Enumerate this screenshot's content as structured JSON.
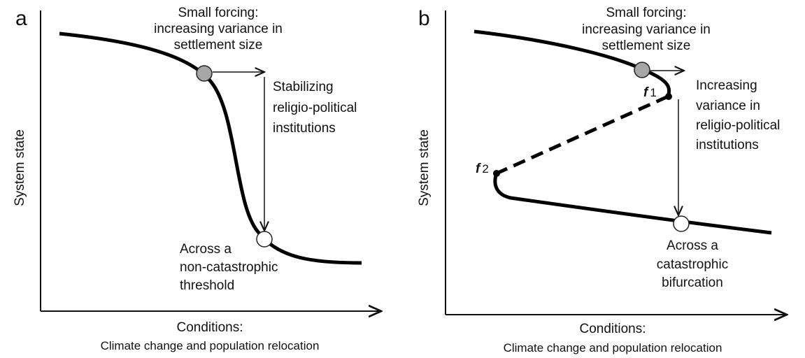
{
  "panels": [
    {
      "label": "a",
      "forcing": [
        "Small forcing:",
        "increasing variance in",
        "settlement size"
      ],
      "response": [
        "Stabilizing",
        "religio-political",
        "institutions"
      ],
      "outcome": [
        "Across a",
        "non-catastrophic",
        "threshold"
      ],
      "y_axis": "System state",
      "x_axis": [
        "Conditions:",
        "Climate change and population relocation"
      ]
    },
    {
      "label": "b",
      "forcing": [
        "Small forcing:",
        "increasing variance in",
        "settlement size"
      ],
      "response": [
        "Increasing",
        "variance in",
        "religio-political",
        "institutions"
      ],
      "outcome": [
        "Across a",
        "catastrophic",
        "bifurcation"
      ],
      "y_axis": "System state",
      "x_axis": [
        "Conditions:",
        "Climate change and population relocation"
      ],
      "fold_points": [
        {
          "symbol": "f",
          "sub": "1"
        },
        {
          "symbol": "f",
          "sub": "2"
        }
      ]
    }
  ]
}
